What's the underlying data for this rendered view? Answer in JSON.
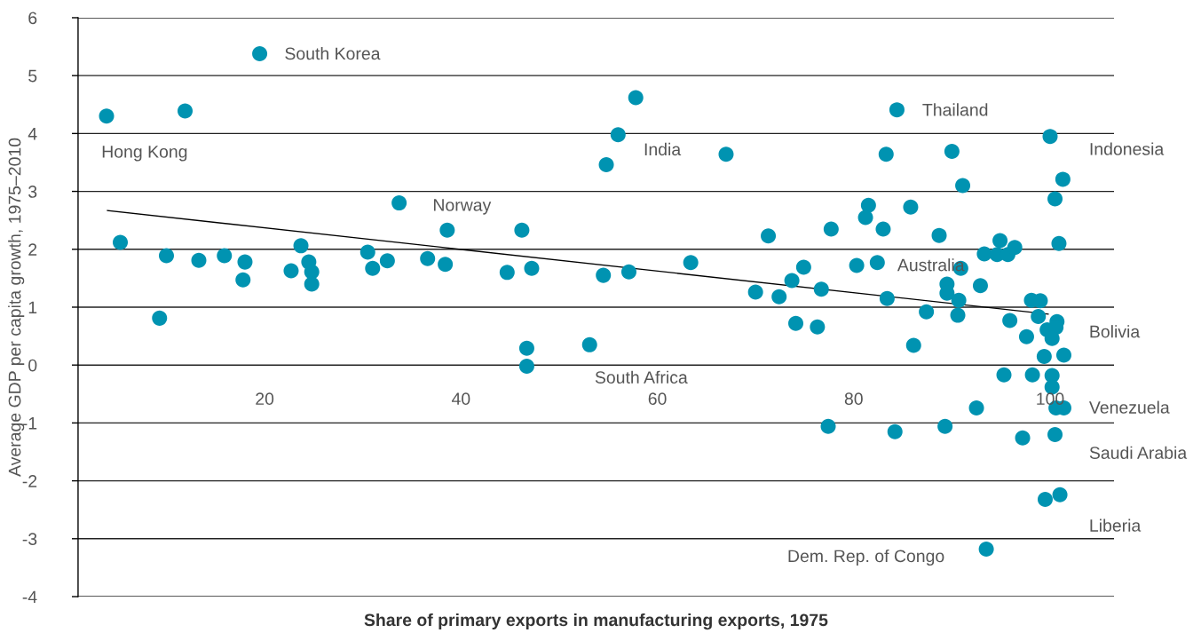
{
  "chart_data": {
    "type": "scatter",
    "xlabel": "Share of primary exports in manufacturing exports, 1975",
    "ylabel": "Average GDP per capita growth, 1975–2010",
    "xlim": [
      1,
      106.5
    ],
    "xticks": [
      20,
      40,
      60,
      80,
      100
    ],
    "ylim": [
      -4,
      6
    ],
    "yticks": [
      -4,
      -3,
      -2,
      -1,
      0,
      1,
      2,
      3,
      4,
      5,
      6
    ],
    "grid": "y",
    "series": [
      {
        "color": "#0093b1",
        "marker": "circle",
        "x": [
          3.9,
          5.3,
          9.3,
          10.0,
          11.9,
          13.3,
          15.9,
          18.0,
          17.8,
          19.5,
          22.7,
          23.7,
          24.5,
          24.8,
          24.8,
          30.5,
          31.0,
          32.5,
          33.7,
          36.6,
          38.4,
          38.6,
          44.7,
          46.2,
          47.2,
          46.7,
          46.7,
          57.8,
          56.0,
          54.8,
          67.0,
          53.1,
          54.5,
          57.1,
          63.4,
          71.3,
          70.0,
          72.4,
          73.7,
          74.9,
          76.7,
          77.7,
          74.1,
          76.3,
          80.3,
          81.5,
          81.2,
          83.0,
          82.4,
          83.4,
          83.3,
          84.4,
          85.8,
          90.0,
          91.1,
          100.0,
          101.3,
          100.5,
          88.7,
          100.9,
          94.9,
          93.3,
          94.6,
          95.7,
          96.4,
          90.9,
          89.5,
          89.5,
          90.7,
          92.9,
          87.4,
          90.6,
          86.1,
          98.1,
          99.0,
          98.8,
          95.9,
          97.6,
          99.7,
          100.7,
          100.6,
          100.2,
          99.4,
          101.4,
          95.3,
          98.2,
          100.2,
          100.2,
          92.5,
          100.6,
          101.4,
          77.4,
          84.2,
          89.3,
          97.2,
          100.5,
          99.5,
          101.0,
          93.5
        ],
        "values": [
          4.3,
          2.12,
          0.81,
          1.89,
          4.39,
          1.81,
          1.89,
          1.78,
          1.47,
          5.38,
          1.63,
          2.06,
          1.78,
          1.61,
          1.4,
          1.95,
          1.67,
          1.8,
          2.8,
          1.84,
          1.74,
          2.33,
          1.6,
          2.33,
          1.67,
          0.29,
          -0.02,
          4.62,
          3.98,
          3.46,
          3.64,
          0.35,
          1.55,
          1.61,
          1.77,
          2.23,
          1.26,
          1.18,
          1.46,
          1.69,
          1.31,
          2.35,
          0.72,
          0.66,
          1.72,
          2.76,
          2.55,
          2.35,
          1.77,
          1.15,
          3.64,
          4.41,
          2.73,
          3.69,
          3.1,
          3.95,
          3.21,
          2.87,
          2.24,
          2.1,
          2.15,
          1.92,
          1.91,
          1.91,
          2.03,
          1.67,
          1.4,
          1.24,
          1.12,
          1.37,
          0.92,
          0.86,
          0.34,
          1.12,
          1.11,
          0.84,
          0.77,
          0.49,
          0.61,
          0.75,
          0.65,
          0.46,
          0.15,
          0.17,
          -0.17,
          -0.17,
          -0.18,
          -0.38,
          -0.74,
          -0.74,
          -0.74,
          -1.06,
          -1.15,
          -1.06,
          -1.26,
          -1.2,
          -2.32,
          -2.24,
          -3.18
        ]
      },
      {
        "type": "line",
        "color": "#000000",
        "x": [
          4.0,
          99.8
        ],
        "values": [
          2.67,
          0.88
        ]
      }
    ],
    "annotations": [
      "South Korea",
      "Hong Kong",
      "India",
      "Thailand",
      "Indonesia",
      "Norway",
      "Australia",
      "Bolivia",
      "South Africa",
      "Venezuela",
      "Saudi Arabia",
      "Liberia",
      "Dem. Rep. of Congo"
    ]
  }
}
